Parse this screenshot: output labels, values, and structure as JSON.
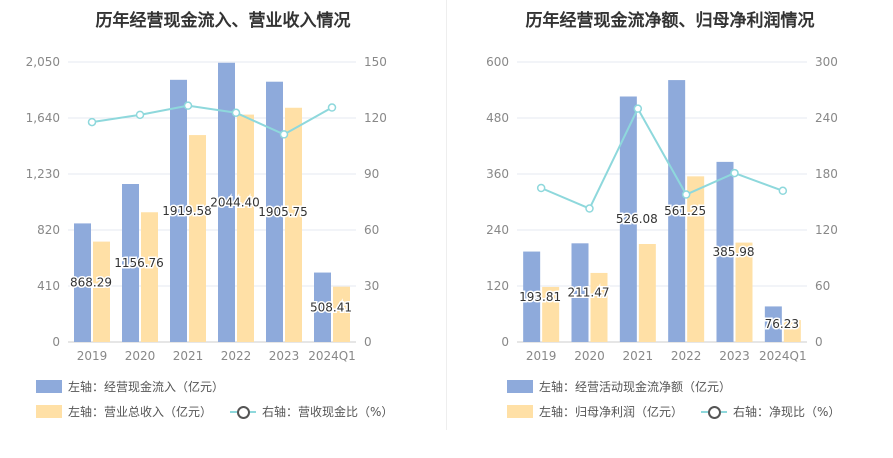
{
  "chart_data": [
    {
      "type": "bar",
      "title": "历年经营现金流入、营业收入情况",
      "categories": [
        "2019",
        "2020",
        "2021",
        "2022",
        "2023",
        "2024Q1"
      ],
      "left_axis": {
        "min": 0,
        "max": 2050,
        "ticks": [
          "0",
          "410",
          "820",
          "1,230",
          "1,640",
          "2,050"
        ]
      },
      "right_axis": {
        "min": 0,
        "max": 150,
        "ticks": [
          "0",
          "30",
          "60",
          "90",
          "120",
          "150"
        ]
      },
      "series": [
        {
          "name": "左轴：经营现金流入（亿元）",
          "kind": "bar",
          "axis": "left",
          "color": "#8eaadb",
          "values": [
            868.29,
            1156.76,
            1919.58,
            2044.4,
            1905.75,
            508.41
          ],
          "labels": [
            "868.29",
            "1156.76",
            "1919.58",
            "2044.40",
            "1905.75",
            "508.41"
          ]
        },
        {
          "name": "左轴：营业总收入（亿元）",
          "kind": "bar",
          "axis": "left",
          "color": "#ffe0a6",
          "values": [
            735,
            950,
            1515,
            1665,
            1715,
            405
          ]
        },
        {
          "name": "右轴：营收现金比（%）",
          "kind": "line",
          "axis": "right",
          "color": "#8ed8dc",
          "values": [
            117.8,
            121.7,
            126.6,
            122.8,
            111.2,
            125.6
          ]
        }
      ],
      "legend": [
        "左轴：经营现金流入（亿元）",
        "左轴：营业总收入（亿元）",
        "右轴：营收现金比（%）"
      ],
      "grid": true
    },
    {
      "type": "bar",
      "title": "历年经营现金流净额、归母净利润情况",
      "categories": [
        "2019",
        "2020",
        "2021",
        "2022",
        "2023",
        "2024Q1"
      ],
      "left_axis": {
        "min": 0,
        "max": 600,
        "ticks": [
          "0",
          "120",
          "240",
          "360",
          "480",
          "600"
        ]
      },
      "right_axis": {
        "min": 0,
        "max": 300,
        "ticks": [
          "0",
          "60",
          "120",
          "180",
          "240",
          "300"
        ]
      },
      "series": [
        {
          "name": "左轴：经营活动现金流净额（亿元）",
          "kind": "bar",
          "axis": "left",
          "color": "#8eaadb",
          "values": [
            193.81,
            211.47,
            526.08,
            561.25,
            385.98,
            76.23
          ],
          "labels": [
            "193.81",
            "211.47",
            "526.08",
            "561.25",
            "385.98",
            "76.23"
          ]
        },
        {
          "name": "左轴：归母净利润（亿元）",
          "kind": "bar",
          "axis": "left",
          "color": "#ffe0a6",
          "values": [
            118,
            148,
            210,
            355,
            213,
            47
          ]
        },
        {
          "name": "右轴：净现比（%）",
          "kind": "line",
          "axis": "right",
          "color": "#8ed8dc",
          "values": [
            165,
            143,
            250,
            158,
            181,
            162
          ]
        }
      ],
      "legend": [
        "左轴：经营活动现金流净额（亿元）",
        "左轴：归母净利润（亿元）",
        "右轴：净现比（%）"
      ],
      "grid": true
    }
  ]
}
